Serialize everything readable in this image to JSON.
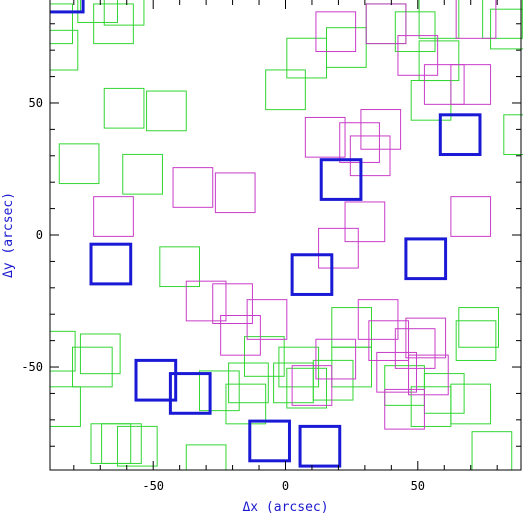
{
  "chart_data": {
    "type": "scatter",
    "marker": "square",
    "title": "",
    "xlabel": "Δx (arcsec)",
    "ylabel": "Δy (arcsec)",
    "xlim": [
      -89,
      89
    ],
    "ylim": [
      -89,
      89
    ],
    "xticks": [
      -50,
      0,
      50
    ],
    "yticks": [
      -50,
      0,
      50
    ],
    "tick_labels": {
      "x": [
        "-50",
        "0",
        "50"
      ],
      "y": [
        "-50",
        "0",
        "50"
      ]
    },
    "grid": false,
    "legend": "none",
    "series": [
      {
        "color": "#33d633",
        "marker_size": 15,
        "stroke_width": 1,
        "points": [
          [
            -85,
            92
          ],
          [
            -71,
            88
          ],
          [
            -61,
            87
          ],
          [
            -65,
            80
          ],
          [
            -86,
            70
          ],
          [
            -88,
            80
          ],
          [
            -61,
            48
          ],
          [
            -45,
            47
          ],
          [
            -78,
            27
          ],
          [
            -54,
            23
          ],
          [
            -40,
            -12
          ],
          [
            -87,
            -44
          ],
          [
            -73,
            -50
          ],
          [
            -70,
            -45
          ],
          [
            -85,
            -65
          ],
          [
            -66,
            -79
          ],
          [
            -56,
            -80
          ],
          [
            -30,
            -87
          ],
          [
            -25,
            -59
          ],
          [
            -15,
            -64
          ],
          [
            5,
            -50
          ],
          [
            3,
            -56
          ],
          [
            25,
            -35
          ],
          [
            18,
            -55
          ],
          [
            8,
            -58
          ],
          [
            25,
            -50
          ],
          [
            58,
            82
          ],
          [
            49,
            77
          ],
          [
            38,
            80
          ],
          [
            58,
            66
          ],
          [
            55,
            51
          ],
          [
            85,
            78
          ],
          [
            82,
            82
          ],
          [
            90,
            38
          ],
          [
            0,
            55
          ],
          [
            8,
            67
          ],
          [
            23,
            71
          ],
          [
            45,
            -57
          ],
          [
            60,
            -60
          ],
          [
            55,
            -65
          ],
          [
            78,
            -82
          ],
          [
            70,
            -64
          ],
          [
            73,
            -35
          ],
          [
            72,
            -40
          ],
          [
            -62,
            -79
          ],
          [
            -14,
            -56
          ],
          [
            -8,
            -46
          ]
        ]
      },
      {
        "color": "#c83cc8",
        "marker_size": 15,
        "stroke_width": 1,
        "points": [
          [
            -65,
            7
          ],
          [
            -35,
            18
          ],
          [
            -19,
            16
          ],
          [
            -30,
            -25
          ],
          [
            -20,
            -26
          ],
          [
            -7,
            -32
          ],
          [
            -17,
            -38
          ],
          [
            10,
            -57
          ],
          [
            19,
            -47
          ],
          [
            35,
            -32
          ],
          [
            39,
            -40
          ],
          [
            45,
            -66
          ],
          [
            42,
            -52
          ],
          [
            53,
            -39
          ],
          [
            49,
            -43
          ],
          [
            54,
            -53
          ],
          [
            20,
            -5
          ],
          [
            30,
            5
          ],
          [
            36,
            40
          ],
          [
            32,
            30
          ],
          [
            28,
            35
          ],
          [
            15,
            37
          ],
          [
            50,
            68
          ],
          [
            19,
            77
          ],
          [
            38,
            80
          ],
          [
            72,
            82
          ],
          [
            70,
            57
          ],
          [
            60,
            57
          ],
          [
            70,
            7
          ]
        ]
      },
      {
        "color": "#1a1ad6",
        "marker_size": 15,
        "stroke_width": 3,
        "points": [
          [
            -66,
            -11
          ],
          [
            -49,
            -55
          ],
          [
            -36,
            -60
          ],
          [
            -6,
            -78
          ],
          [
            13,
            -80
          ],
          [
            10,
            -15
          ],
          [
            21,
            21
          ],
          [
            53,
            -9
          ],
          [
            66,
            38
          ],
          [
            -84,
            92
          ]
        ]
      }
    ]
  }
}
